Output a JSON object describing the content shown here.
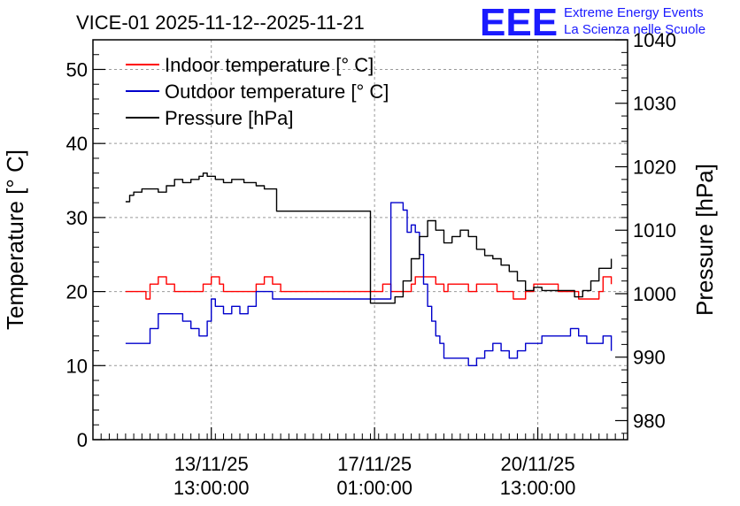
{
  "chart_data": {
    "type": "line",
    "title": "VICE-01 2025-11-12--2025-11-21",
    "ylabel_left": "Temperature [° C]",
    "ylabel_right": "Pressure [hPa]",
    "ylim_left": [
      0,
      54
    ],
    "ylim_right": [
      977,
      1040
    ],
    "yticks_left": [
      "0",
      "10",
      "20",
      "30",
      "40",
      "50"
    ],
    "yticks_right": [
      "980",
      "990",
      "1000",
      "1010",
      "1020",
      "1030",
      "1040"
    ],
    "xlim": [
      -1.4,
      11.7
    ],
    "xticks": [
      {
        "x": 1.5,
        "date": "13/11/25",
        "time": "13:00:00"
      },
      {
        "x": 5.5,
        "date": "17/11/25",
        "time": "01:00:00"
      },
      {
        "x": 9.5,
        "date": "20/11/25",
        "time": "13:00:00"
      }
    ],
    "grid": true,
    "legend_position": "top-left",
    "series": [
      {
        "name": "Indoor temperature [° C]",
        "color": "#ff0000",
        "axis": "left",
        "x": [
          -0.6,
          -0.2,
          -0.1,
          0.0,
          0.1,
          0.2,
          0.4,
          0.6,
          1.2,
          1.3,
          1.5,
          1.7,
          1.8,
          2.1,
          2.4,
          2.6,
          2.8,
          3.0,
          3.2,
          5.6,
          5.7,
          5.8,
          5.9,
          6.2,
          6.4,
          6.5,
          6.8,
          7.0,
          7.2,
          7.3,
          7.5,
          7.8,
          8.0,
          8.3,
          8.5,
          8.7,
          8.9,
          9.2,
          9.4,
          9.6,
          10.0,
          10.2,
          10.5,
          10.7,
          11.0,
          11.1,
          11.3
        ],
        "y": [
          20,
          20,
          19,
          21,
          21,
          22,
          21,
          20,
          20,
          21,
          22,
          21,
          20,
          20,
          20,
          21,
          22,
          21,
          20,
          20,
          21,
          21,
          20,
          20,
          21,
          22,
          22,
          21,
          20,
          21,
          21,
          20,
          21,
          21,
          20,
          20,
          19,
          20,
          21,
          21,
          20,
          20,
          19,
          19,
          20,
          22,
          21
        ]
      },
      {
        "name": "Outdoor temperature [° C]",
        "color": "#0000cc",
        "axis": "left",
        "x": [
          -0.6,
          -0.2,
          0.0,
          0.2,
          0.6,
          0.8,
          1.0,
          1.2,
          1.4,
          1.5,
          1.6,
          1.8,
          2.0,
          2.2,
          2.4,
          2.6,
          2.8,
          3.0,
          3.2,
          5.9,
          6.1,
          6.2,
          6.3,
          6.4,
          6.5,
          6.6,
          6.7,
          6.8,
          6.9,
          7.0,
          7.1,
          7.2,
          7.4,
          7.6,
          7.8,
          8.0,
          8.2,
          8.4,
          8.6,
          8.8,
          9.0,
          9.2,
          9.4,
          9.6,
          9.8,
          10.1,
          10.3,
          10.5,
          10.7,
          10.9,
          11.1,
          11.3
        ],
        "y": [
          13,
          13,
          15,
          17,
          17,
          16,
          15,
          14,
          16,
          19,
          18,
          17,
          18,
          17,
          18,
          20,
          20,
          19,
          19,
          32,
          32,
          31,
          28,
          29,
          28,
          25,
          21,
          18,
          16,
          14,
          13,
          11,
          11,
          11,
          10,
          11,
          12,
          13,
          12,
          11,
          12,
          13,
          13,
          14,
          14,
          14,
          15,
          14,
          13,
          13,
          14,
          12
        ]
      },
      {
        "name": "Pressure [hPa]",
        "color": "#000000",
        "axis": "right",
        "x": [
          -0.6,
          -0.5,
          -0.4,
          -0.2,
          0.0,
          0.2,
          0.4,
          0.6,
          0.8,
          1.0,
          1.2,
          1.3,
          1.4,
          1.6,
          1.8,
          2.0,
          2.3,
          2.6,
          2.8,
          3.1,
          5.4,
          5.8,
          6.0,
          6.2,
          6.4,
          6.6,
          6.8,
          7.0,
          7.2,
          7.4,
          7.6,
          7.8,
          8.0,
          8.2,
          8.4,
          8.6,
          8.8,
          9.0,
          9.2,
          9.4,
          9.6,
          9.8,
          10.0,
          10.2,
          10.4,
          10.6,
          10.8,
          11.0,
          11.3
        ],
        "y": [
          1014.5,
          1015.5,
          1016,
          1016.5,
          1016.5,
          1016,
          1017,
          1018,
          1017.5,
          1018,
          1018.5,
          1019,
          1018.5,
          1018,
          1017.5,
          1018,
          1017.5,
          1017,
          1016.5,
          1013,
          998.5,
          998.5,
          999.5,
          1002,
          1005.5,
          1009,
          1011.5,
          1010,
          1008,
          1009,
          1010,
          1009,
          1007,
          1006,
          1005.5,
          1004.5,
          1003.5,
          1002,
          1000.5,
          1001,
          1000.5,
          1000.5,
          1000.5,
          1000.5,
          999.5,
          1000.5,
          1002,
          1004,
          1005.5
        ]
      }
    ]
  },
  "logo": {
    "mark": "EEE",
    "line1": "Extreme Energy Events",
    "line2": "La Scienza nelle Scuole"
  }
}
